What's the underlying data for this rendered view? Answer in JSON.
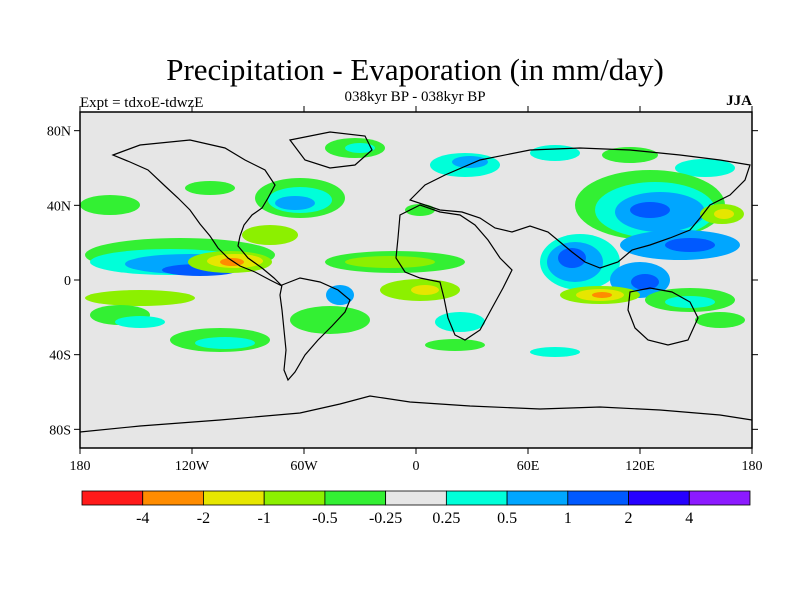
{
  "map": {
    "title": "Precipitation - Evaporation (in mm/day)",
    "subtitle": "038kyr BP - 038kyr BP",
    "left_label": "Expt = tdxoE-tdwzE",
    "right_label": "JJA",
    "lat_ticks": [
      {
        "value": 80,
        "label": "80N"
      },
      {
        "value": 40,
        "label": "40N"
      },
      {
        "value": 0,
        "label": "0"
      },
      {
        "value": -40,
        "label": "40S"
      },
      {
        "value": -80,
        "label": "80S"
      }
    ],
    "lon_ticks": [
      {
        "value": -180,
        "label": "180"
      },
      {
        "value": -120,
        "label": "120W"
      },
      {
        "value": -60,
        "label": "60W"
      },
      {
        "value": 0,
        "label": "0"
      },
      {
        "value": 60,
        "label": "60E"
      },
      {
        "value": 120,
        "label": "120E"
      },
      {
        "value": 180,
        "label": "180"
      }
    ],
    "lat_range": [
      -90,
      90
    ],
    "lon_range": [
      -180,
      180
    ],
    "background_color": "#e6e6e6",
    "colorbar": {
      "colors": [
        "#ff1a1a",
        "#ff8c00",
        "#e6e600",
        "#8cf000",
        "#33f033",
        "#e6e6e6",
        "#00ffd9",
        "#00a6ff",
        "#0059ff",
        "#2600ff",
        "#8c1aff"
      ],
      "labels": [
        "-4",
        "-2",
        "-1",
        "-0.5",
        "-0.25",
        "0.25",
        "0.5",
        "1",
        "2",
        "4"
      ]
    }
  }
}
